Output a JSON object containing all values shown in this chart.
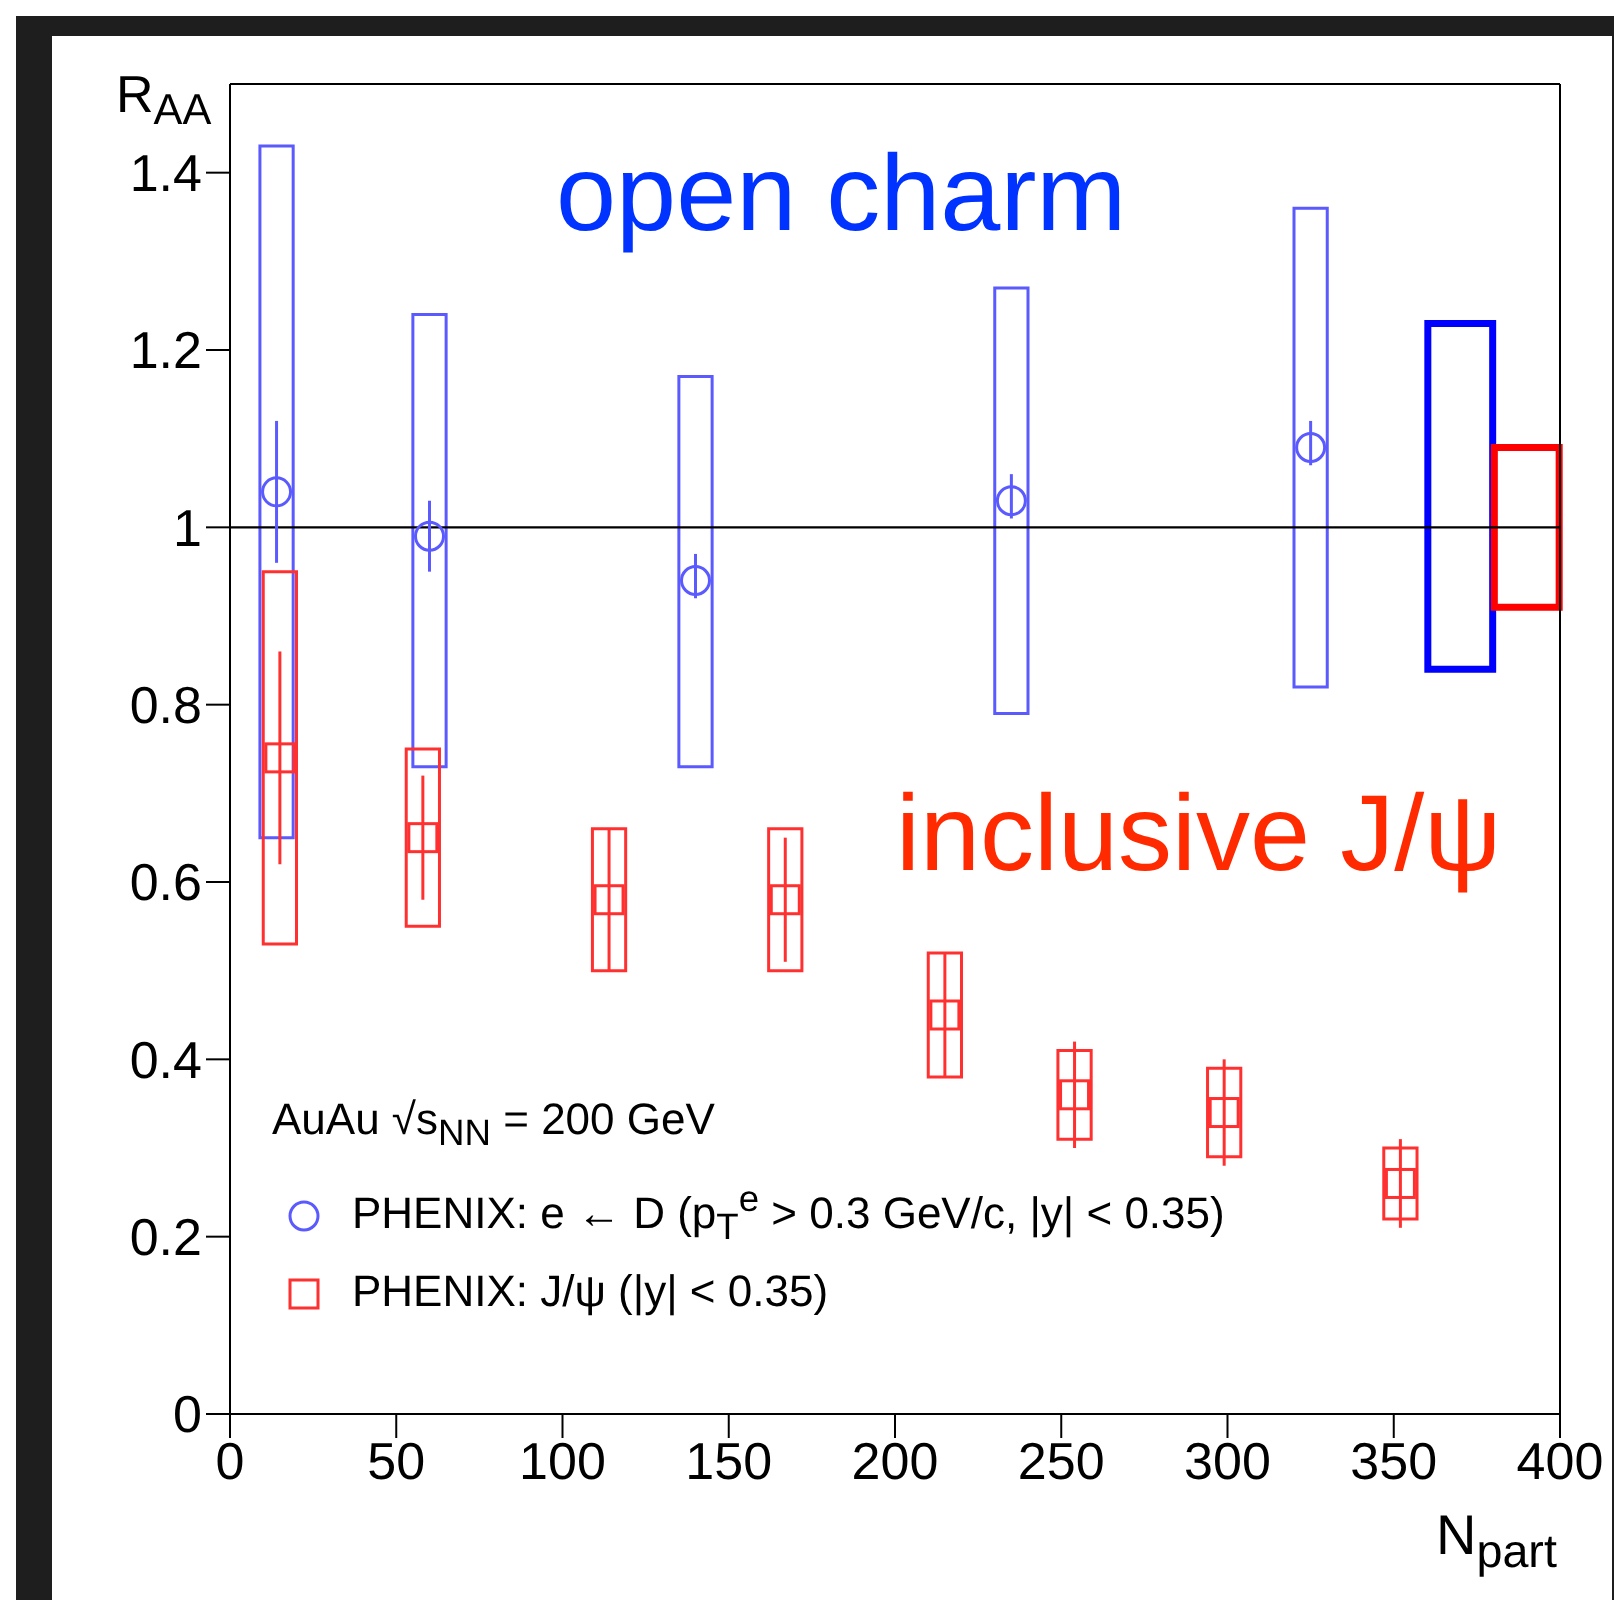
{
  "chart_data": {
    "type": "scatter",
    "xlabel": "N$_{part}$",
    "ylabel": "R$_{AA}$",
    "legend_title": "AuAu  √s$_{NN}$ = 200 GeV",
    "legend": "bottom left",
    "xlim": [
      0,
      400
    ],
    "ylim": [
      0,
      1.5
    ],
    "xticks": [
      0,
      50,
      100,
      150,
      200,
      250,
      300,
      350,
      400
    ],
    "yticks": [
      0,
      0.2,
      0.4,
      0.6,
      0.8,
      1,
      1.2,
      1.4
    ],
    "annotations": [
      "open charm",
      "inclusive J/ψ"
    ],
    "ref_lines": [
      {
        "axis": "y",
        "value": 1,
        "color": "#000000"
      }
    ],
    "series": [
      {
        "name": "PHENIX: e ← D (p$_{T}$$^{e}$ > 0.3 GeV/c, |y| < 0.35)",
        "color": "#5a5aff",
        "marker": "circle",
        "x": [
          14,
          60,
          140,
          235,
          325
        ],
        "values": [
          1.04,
          0.99,
          0.94,
          1.03,
          1.09
        ],
        "errors": [
          [
            0.96,
            1.12
          ],
          [
            0.95,
            1.03
          ],
          [
            0.92,
            0.97
          ],
          [
            1.01,
            1.06
          ],
          [
            1.07,
            1.12
          ]
        ]
      },
      {
        "name": "PHENIX: J/ψ (|y| < 0.35)",
        "color": "#ff3030",
        "marker": "square",
        "x": [
          15,
          58,
          114,
          167,
          215,
          254,
          299,
          352
        ],
        "values": [
          0.74,
          0.65,
          0.58,
          0.58,
          0.45,
          0.36,
          0.34,
          0.26
        ],
        "errors": [
          [
            0.62,
            0.86
          ],
          [
            0.58,
            0.72
          ],
          [
            0.5,
            0.66
          ],
          [
            0.51,
            0.65
          ],
          [
            0.38,
            0.52
          ],
          [
            0.3,
            0.42
          ],
          [
            0.28,
            0.4
          ],
          [
            0.21,
            0.31
          ]
        ]
      },
      {
        "type": "bar",
        "color": "#5a5aff",
        "x": [
          14,
          60,
          140,
          235,
          325
        ],
        "base": [
          0.65,
          0.73,
          0.73,
          0.79,
          0.82
        ],
        "values": [
          0.78,
          0.51,
          0.44,
          0.48,
          0.54
        ]
      },
      {
        "type": "bar",
        "color": "#ff3030",
        "x": [
          15,
          58,
          114,
          167,
          215,
          254,
          299,
          352
        ],
        "base": [
          0.53,
          0.55,
          0.5,
          0.5,
          0.38,
          0.31,
          0.29,
          0.22
        ],
        "values": [
          0.42,
          0.2,
          0.16,
          0.16,
          0.14,
          0.1,
          0.1,
          0.08
        ]
      },
      {
        "type": "bar",
        "color": "#0000ff",
        "x": [
          370
        ],
        "base": [
          0.84
        ],
        "values": [
          0.39
        ]
      },
      {
        "type": "bar",
        "color": "#ff0000",
        "x": [
          390
        ],
        "base": [
          0.91
        ],
        "values": [
          0.18
        ]
      }
    ]
  }
}
